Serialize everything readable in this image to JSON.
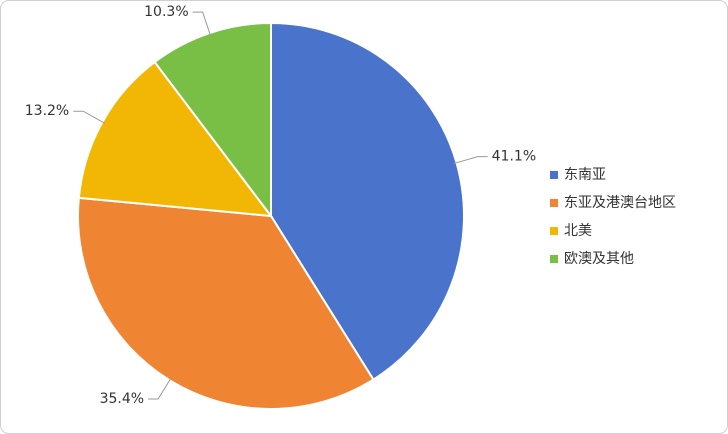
{
  "chart_data": {
    "type": "pie",
    "categories": [
      "东南亚",
      "东亚及港澳台地区",
      "北美",
      "欧澳及其他"
    ],
    "values": [
      41.1,
      35.4,
      13.2,
      10.3
    ],
    "value_labels": [
      "41.1%",
      "35.4%",
      "13.2%",
      "10.3%"
    ],
    "colors": [
      "#4a74cc",
      "#ef8532",
      "#f2b705",
      "#7abf45"
    ],
    "legend": "right"
  }
}
